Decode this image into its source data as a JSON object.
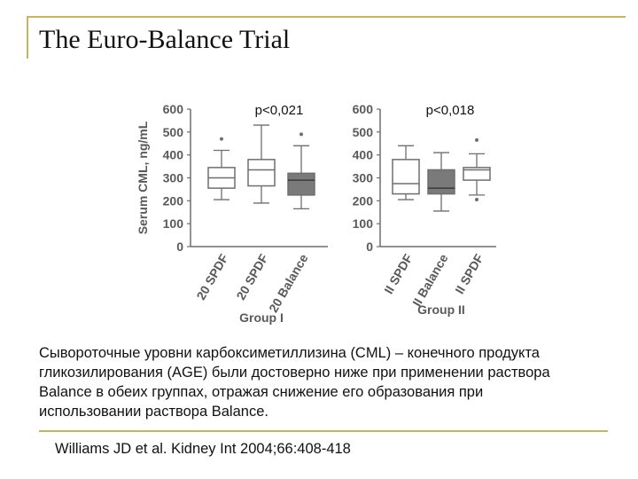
{
  "slide": {
    "title": "The Euro-Balance Trial",
    "caption_lines": [
      "Сывороточные уровни карбоксиметиллизина (CML) – конечного продукта",
      "гликозилирования (AGE) были достоверно ниже при применении раствора",
      "Balance в обеих группах, отражая снижение его образования при",
      "использовании раствора Balance."
    ],
    "reference": "Williams JD et al. Kidney Int 2004;66:408-418"
  },
  "colors": {
    "accent": "#c8b45a",
    "box_filled": "#7a7a7a",
    "box_open": "#ffffff"
  },
  "chart_data": [
    {
      "type": "box",
      "title": "p<0,021",
      "ylabel": "Serum CML, ng/mL",
      "xlabel": "Group I",
      "ylim": [
        0,
        600
      ],
      "yticks": [
        0,
        100,
        200,
        300,
        400,
        500,
        600
      ],
      "categories": [
        "20 SPDF",
        "20 SPDF",
        "20 Balance"
      ],
      "boxes": [
        {
          "name": "20 SPDF",
          "min": 205,
          "q1": 255,
          "median": 300,
          "q3": 345,
          "max": 420,
          "outliers": [
            470
          ],
          "filled": false
        },
        {
          "name": "20 SPDF",
          "min": 190,
          "q1": 265,
          "median": 335,
          "q3": 380,
          "max": 530,
          "outliers": [],
          "filled": false
        },
        {
          "name": "20 Balance",
          "min": 165,
          "q1": 225,
          "median": 290,
          "q3": 320,
          "max": 440,
          "outliers": [
            490
          ],
          "filled": true
        }
      ]
    },
    {
      "type": "box",
      "title": "p<0,018",
      "ylabel": "",
      "xlabel": "Group II",
      "ylim": [
        0,
        600
      ],
      "yticks": [
        0,
        100,
        200,
        300,
        400,
        500,
        600
      ],
      "categories": [
        "II SPDF",
        "II Balance",
        "II SPDF"
      ],
      "boxes": [
        {
          "name": "II SPDF",
          "min": 205,
          "q1": 230,
          "median": 275,
          "q3": 380,
          "max": 440,
          "outliers": [],
          "filled": false
        },
        {
          "name": "II Balance",
          "min": 155,
          "q1": 230,
          "median": 255,
          "q3": 335,
          "max": 410,
          "outliers": [],
          "filled": true
        },
        {
          "name": "II SPDF",
          "min": 225,
          "q1": 290,
          "median": 335,
          "q3": 345,
          "max": 405,
          "outliers": [
            465,
            205
          ],
          "filled": false
        }
      ]
    }
  ]
}
